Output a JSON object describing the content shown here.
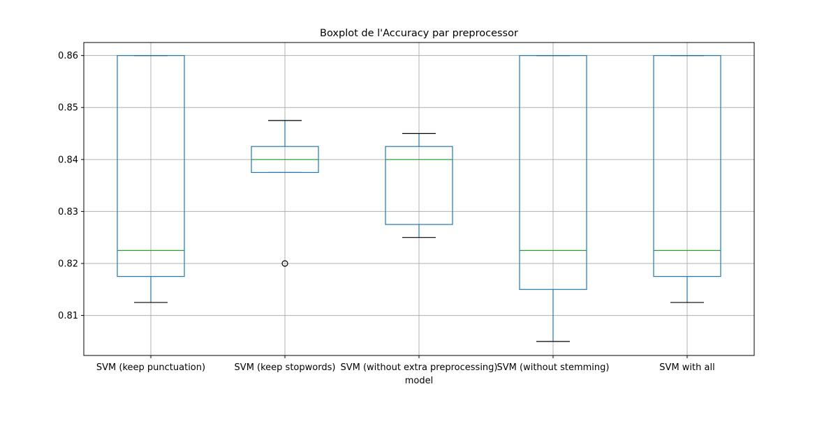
{
  "chart_data": {
    "type": "boxplot",
    "title": "Boxplot de l'Accuracy par preprocessor",
    "xlabel": "model",
    "ylabel": "",
    "ylim": [
      0.8023,
      0.8625
    ],
    "yticks": [
      0.81,
      0.82,
      0.83,
      0.84,
      0.85,
      0.86
    ],
    "ytick_labels": [
      "0.81",
      "0.82",
      "0.83",
      "0.84",
      "0.85",
      "0.86"
    ],
    "grid": true,
    "categories": [
      "SVM (keep punctuation)",
      "SVM (keep stopwords)",
      "SVM (without extra preprocessing)",
      "SVM (without stemming)",
      "SVM with all"
    ],
    "boxes": [
      {
        "whisker_low": 0.8125,
        "q1": 0.8175,
        "median": 0.8225,
        "q3": 0.86,
        "whisker_high": 0.86,
        "outliers": []
      },
      {
        "whisker_low": 0.8375,
        "q1": 0.8375,
        "median": 0.84,
        "q3": 0.8425,
        "whisker_high": 0.8475,
        "outliers": [
          0.82
        ]
      },
      {
        "whisker_low": 0.825,
        "q1": 0.8275,
        "median": 0.84,
        "q3": 0.8425,
        "whisker_high": 0.845,
        "outliers": []
      },
      {
        "whisker_low": 0.805,
        "q1": 0.815,
        "median": 0.8225,
        "q3": 0.86,
        "whisker_high": 0.86,
        "outliers": []
      },
      {
        "whisker_low": 0.8125,
        "q1": 0.8175,
        "median": 0.8225,
        "q3": 0.86,
        "whisker_high": 0.86,
        "outliers": []
      }
    ],
    "colors": {
      "box": "#1f77b4",
      "median": "#2ca02c",
      "whisker_cap": "#000000",
      "grid": "#b0b0b0",
      "outlier": "#000000"
    }
  }
}
